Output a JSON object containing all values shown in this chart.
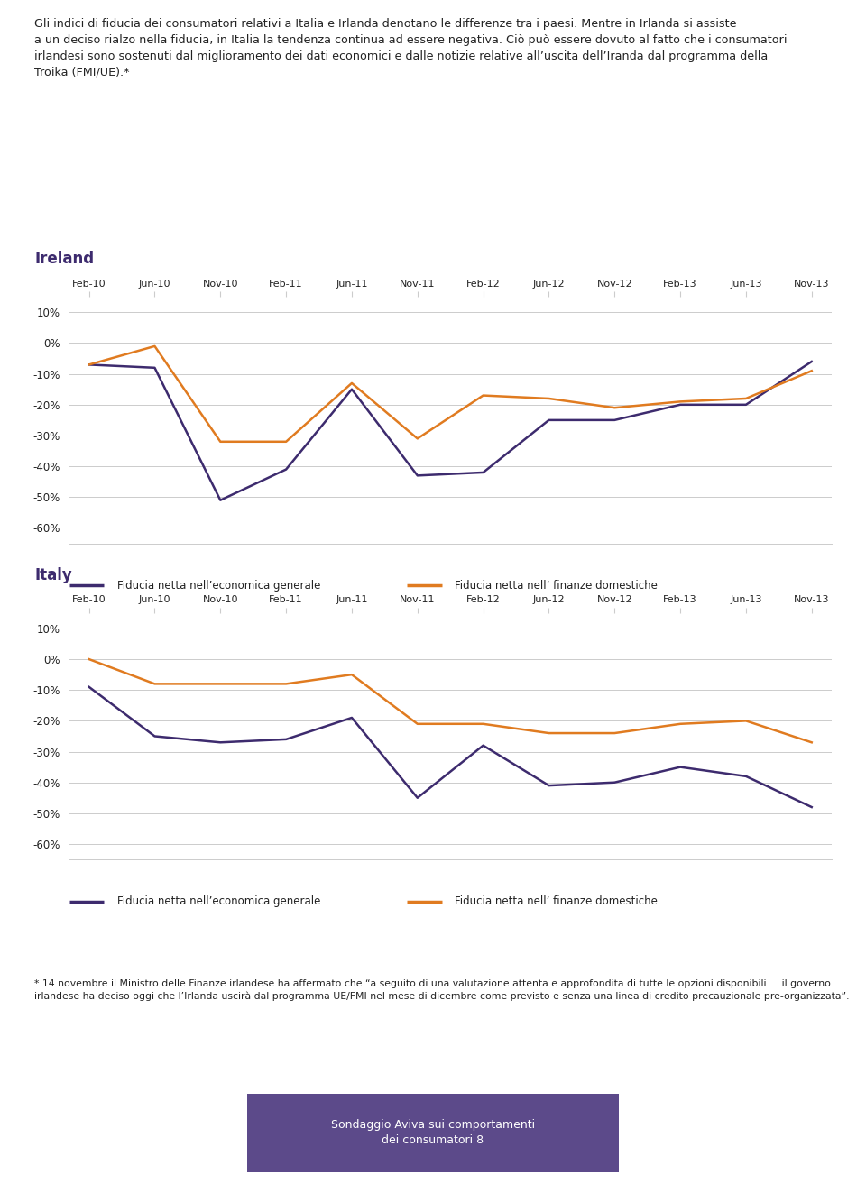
{
  "title_text": "Gli indici di fiducia dei consumatori relativi a Italia e Irlanda denotano le differenze tra i paesi. Mentre in Irlanda si assiste\na un deciso rialzo nella fiducia, in Italia la tendenza continua ad essere negativa. Ciò può essere dovuto al fatto che i consumatori\nirlandesi sono sostenuti dal miglioramento dei dati economici e dalle notizie relative all’uscita dell’Iranda dal programma della\nTroika (FMI/UE).*",
  "x_labels": [
    "Feb-10",
    "Jun-10",
    "Nov-10",
    "Feb-11",
    "Jun-11",
    "Nov-11",
    "Feb-12",
    "Jun-12",
    "Nov-12",
    "Feb-13",
    "Jun-13",
    "Nov-13"
  ],
  "ireland_general": [
    -7,
    -8,
    -51,
    -41,
    -15,
    -43,
    -42,
    -25,
    -25,
    -20,
    -20,
    -6
  ],
  "ireland_domestic": [
    -7,
    -1,
    -32,
    -32,
    -13,
    -31,
    -17,
    -18,
    -21,
    -19,
    -18,
    -9
  ],
  "italy_general": [
    -9,
    -25,
    -27,
    -26,
    -19,
    -45,
    -28,
    -41,
    -40,
    -35,
    -38,
    -48
  ],
  "italy_domestic": [
    0,
    -8,
    -8,
    -8,
    -5,
    -21,
    -21,
    -24,
    -24,
    -21,
    -20,
    -27
  ],
  "color_purple": "#3d2b6e",
  "color_orange": "#e07b20",
  "background_color": "#ffffff",
  "grid_color": "#cccccc",
  "ylim_min": -65,
  "ylim_max": 15,
  "yticks": [
    10,
    0,
    -10,
    -20,
    -30,
    -40,
    -50,
    -60
  ],
  "legend_label_general": "Fiducia netta nell’economica generale",
  "legend_label_domestic": "Fiducia netta nell’ finanze domestiche",
  "ireland_label": "Ireland",
  "italy_label": "Italy",
  "footnote": "* 14 novembre il Ministro delle Finanze irlandese ha affermato che “a seguito di una valutazione attenta e approfondita di tutte le opzioni disponibili ... il governo\nirlandese ha deciso oggi che l’Irlanda uscirà dal programma UE/FMI nel mese di dicembre come previsto e senza una linea di credito precauzionale pre-organizzata”.",
  "footer_box_text": "Sondaggio Aviva sui comportamenti\ndei consumatori 8",
  "footer_box_color": "#5c4a8a"
}
